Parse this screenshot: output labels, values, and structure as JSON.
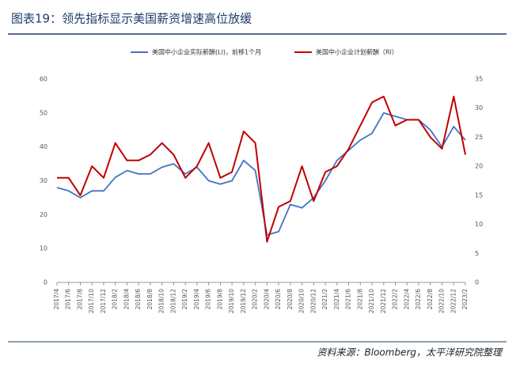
{
  "chart_data": {
    "type": "line",
    "title": "图表19：领先指标显示美国薪资增速高位放缓",
    "source": "资料来源：Bloomberg，太平洋研究院整理",
    "categories": [
      "2017/4",
      "2017/6",
      "2017/8",
      "2017/10",
      "2017/12",
      "2018/2",
      "2018/4",
      "2018/6",
      "2018/8",
      "2018/10",
      "2018/12",
      "2019/2",
      "2019/4",
      "2019/6",
      "2019/8",
      "2019/10",
      "2019/12",
      "2020/2",
      "2020/4",
      "2020/6",
      "2020/8",
      "2020/10",
      "2020/12",
      "2021/2",
      "2021/4",
      "2021/6",
      "2021/8",
      "2021/10",
      "2021/12",
      "2022/2",
      "2022/4",
      "2022/6",
      "2022/8",
      "2022/10",
      "2022/12",
      "2023/2"
    ],
    "series": [
      {
        "name": "美国中小企业实际薪酬(LI)，前移1个月",
        "color": "#4472c4",
        "axis": "y",
        "values": [
          28,
          27,
          25,
          27,
          27,
          31,
          33,
          32,
          32,
          34,
          35,
          32,
          34,
          30,
          29,
          30,
          36,
          33,
          14,
          15,
          23,
          22,
          25,
          30,
          36,
          39,
          42,
          44,
          50,
          49,
          48,
          48,
          45,
          40,
          46,
          42
        ]
      },
      {
        "name": "美国中小企业计划薪酬（RI）",
        "color": "#c00000",
        "axis": "y2",
        "values": [
          18,
          18,
          15,
          20,
          18,
          24,
          21,
          21,
          22,
          24,
          22,
          18,
          20,
          24,
          18,
          19,
          26,
          24,
          7,
          13,
          14,
          20,
          14,
          19,
          20,
          23,
          27,
          31,
          32,
          27,
          28,
          28,
          25,
          23,
          32,
          22
        ]
      }
    ],
    "ylim": [
      0,
      60
    ],
    "yticks": [
      0,
      10,
      20,
      30,
      40,
      50,
      60
    ],
    "y2lim": [
      0,
      35
    ],
    "y2ticks": [
      0,
      5,
      10,
      15,
      20,
      25,
      30,
      35
    ],
    "legend": "top"
  }
}
